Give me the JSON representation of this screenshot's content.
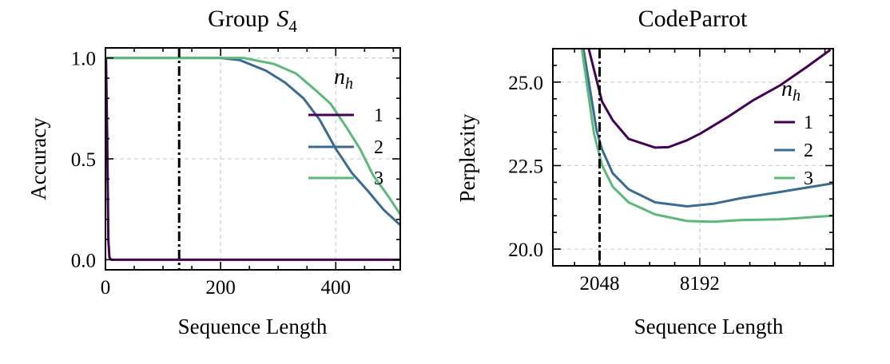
{
  "chart_data": [
    {
      "type": "line",
      "title": "Group S",
      "title_subscript": "4",
      "xlabel": "Sequence Length",
      "ylabel": "Accuracy",
      "xlim": [
        0,
        512
      ],
      "ylim": [
        -0.05,
        1.05
      ],
      "xticks": [
        0,
        200,
        400
      ],
      "xtick_labels": [
        "0",
        "200",
        "400"
      ],
      "xminor_step": 50,
      "yticks": [
        0.0,
        0.5,
        1.0
      ],
      "ytick_labels": [
        "0.0",
        "0.5",
        "1.0"
      ],
      "yminor_step": 0.1,
      "grid": true,
      "vline": 128,
      "legend": {
        "title": "n",
        "title_subscript": "h",
        "placement": "right"
      },
      "series": [
        {
          "name": "1",
          "color": "#440154",
          "x": [
            0,
            1,
            3,
            5,
            7,
            10,
            512
          ],
          "y": [
            1.0,
            1.0,
            0.6,
            0.1,
            0.01,
            0.0,
            0.0
          ]
        },
        {
          "name": "2",
          "color": "#3b6b8f",
          "x": [
            0,
            200,
            233,
            279,
            312,
            344,
            372,
            400,
            428,
            456,
            483,
            512
          ],
          "y": [
            1.0,
            1.0,
            0.99,
            0.937,
            0.878,
            0.8,
            0.694,
            0.55,
            0.43,
            0.34,
            0.248,
            0.172
          ]
        },
        {
          "name": "3",
          "color": "#5db97a",
          "x": [
            0,
            240,
            293,
            331,
            363,
            391,
            419,
            442,
            465,
            490,
            512
          ],
          "y": [
            1.0,
            1.0,
            0.97,
            0.923,
            0.845,
            0.773,
            0.654,
            0.55,
            0.418,
            0.32,
            0.225
          ]
        }
      ]
    },
    {
      "type": "line",
      "title": "CodeParrot",
      "xlabel": "Sequence Length",
      "ylabel": "Perplexity",
      "xlim": [
        -820,
        16384
      ],
      "ylim": [
        19.5,
        26.0
      ],
      "xticks": [
        2048,
        8192
      ],
      "xtick_labels": [
        "2048",
        "8192"
      ],
      "xminor_step": 1536,
      "yticks": [
        20.0,
        22.5,
        25.0
      ],
      "ytick_labels": [
        "20.0",
        "22.5",
        "25.0"
      ],
      "yminor_step": 0.5,
      "grid": true,
      "vline": 2048,
      "legend": {
        "title": "n",
        "title_subscript": "h",
        "placement": "right"
      },
      "series": [
        {
          "name": "1",
          "color": "#440154",
          "x": [
            1383,
            2195,
            2850,
            3828,
            5457,
            6273,
            7412,
            8229,
            9858,
            11486,
            13116,
            14746,
            16213
          ],
          "y": [
            26.0,
            24.42,
            23.86,
            23.3,
            23.04,
            23.05,
            23.26,
            23.46,
            23.94,
            24.46,
            24.9,
            25.45,
            25.97
          ]
        },
        {
          "name": "2",
          "color": "#3b6b8f",
          "x": [
            1055,
            1872,
            2195,
            2850,
            3828,
            5457,
            7412,
            9041,
            10670,
            13116,
            16375
          ],
          "y": [
            26.0,
            23.54,
            22.99,
            22.27,
            21.79,
            21.4,
            21.28,
            21.36,
            21.52,
            21.71,
            21.97
          ]
        },
        {
          "name": "3",
          "color": "#5db97a",
          "x": [
            958,
            1706,
            2195,
            2850,
            3828,
            5457,
            7412,
            9041,
            10670,
            13116,
            16375
          ],
          "y": [
            26.0,
            23.46,
            22.51,
            21.87,
            21.4,
            21.04,
            20.84,
            20.82,
            20.87,
            20.89,
            21.0
          ]
        }
      ]
    }
  ]
}
